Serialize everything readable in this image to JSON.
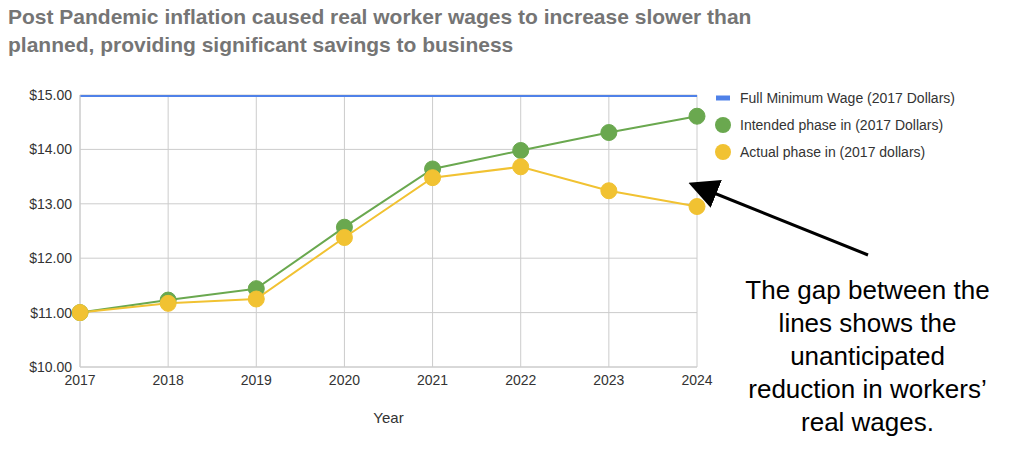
{
  "chart_data": {
    "type": "line",
    "title": [
      "Post Pandemic inflation caused real worker wages to increase slower than",
      "planned, providing significant savings to business"
    ],
    "x_label": "Year",
    "categories": [
      "2017",
      "2018",
      "2019",
      "2020",
      "2021",
      "2022",
      "2023",
      "2024"
    ],
    "series": [
      {
        "name": "Full Minimum Wage (2017 Dollars)",
        "color": "#4f81e8",
        "marker": "none",
        "line_style": "solid",
        "values": [
          15,
          15,
          15,
          15,
          15,
          15,
          15,
          15
        ]
      },
      {
        "name": "Intended phase in (2017 Dollars)",
        "color": "#6aa84f",
        "marker": "circle",
        "line_style": "solid",
        "values": [
          11.0,
          11.23,
          11.44,
          12.57,
          13.64,
          13.98,
          14.31,
          14.61
        ]
      },
      {
        "name": "Actual phase in (2017 dollars)",
        "color": "#f1c232",
        "marker": "circle",
        "line_style": "solid",
        "values": [
          11.0,
          11.17,
          11.25,
          12.38,
          13.48,
          13.68,
          13.24,
          12.95
        ]
      }
    ],
    "ylim": [
      10,
      15
    ],
    "yticks": [
      {
        "value": 10,
        "label": "$10.00"
      },
      {
        "value": 11,
        "label": "$11.00"
      },
      {
        "value": 12,
        "label": "$12.00"
      },
      {
        "value": 13,
        "label": "$13.00"
      },
      {
        "value": 14,
        "label": "$14.00"
      },
      {
        "value": 15,
        "label": "$15.00"
      }
    ],
    "grid": true,
    "legend": "right",
    "annotation": [
      "The gap between the",
      "lines shows the",
      "unanticipated",
      "reduction in workers’",
      "real wages."
    ]
  }
}
